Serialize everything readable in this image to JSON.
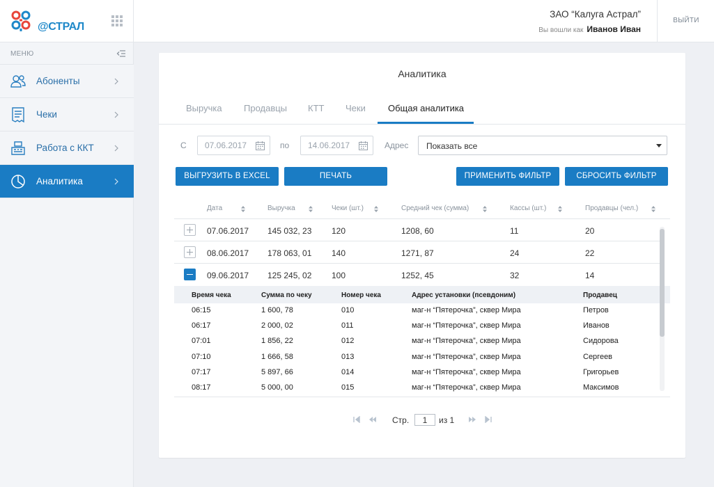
{
  "header": {
    "logo_text": "@СТРАЛ",
    "org_name": "ЗАО “Калуга Астрал”",
    "logged_in_label": "Вы вошли как",
    "user_name": "Иванов Иван",
    "logout_label": "ВЫЙТИ"
  },
  "sidebar": {
    "menu_label": "МЕНЮ",
    "items": [
      {
        "label": "Абоненты",
        "icon": "users-icon",
        "active": false
      },
      {
        "label": "Чеки",
        "icon": "receipt-icon",
        "active": false
      },
      {
        "label": "Работа с ККТ",
        "icon": "cash-register-icon",
        "active": false
      },
      {
        "label": "Аналитика",
        "icon": "pie-chart-icon",
        "active": true
      }
    ]
  },
  "main": {
    "title": "Аналитика",
    "tabs": [
      {
        "label": "Выручка",
        "active": false
      },
      {
        "label": "Продавцы",
        "active": false
      },
      {
        "label": "КТТ",
        "active": false
      },
      {
        "label": "Чеки",
        "active": false
      },
      {
        "label": "Общая аналитика",
        "active": true
      }
    ],
    "filters": {
      "from_label": "С",
      "from_value": "07.06.2017",
      "to_label": "по",
      "to_value": "14.06.2017",
      "address_label": "Адрес",
      "address_value": "Показать все"
    },
    "buttons": {
      "export": "ВЫГРУЗИТЬ В EXCEL",
      "print": "ПЕЧАТЬ",
      "apply": "ПРИМЕНИТЬ ФИЛЬТР",
      "reset": "СБРОСИТЬ ФИЛЬТР"
    },
    "table": {
      "columns": [
        "Дата",
        "Выручка",
        "Чеки (шт.)",
        "Средний чек (сумма)",
        "Кассы (шт.)",
        "Продавцы (чел.)"
      ],
      "rows": [
        {
          "date": "07.06.2017",
          "revenue": "145 032, 23",
          "checks": "120",
          "avg": "1208, 60",
          "kkt": "11",
          "sellers": "20",
          "expanded": false
        },
        {
          "date": "08.06.2017",
          "revenue": "178 063, 01",
          "checks": "140",
          "avg": "1271, 87",
          "kkt": "24",
          "sellers": "22",
          "expanded": false
        },
        {
          "date": "09.06.2017",
          "revenue": "125 245, 02",
          "checks": "100",
          "avg": "1252, 45",
          "kkt": "32",
          "sellers": "14",
          "expanded": true
        }
      ],
      "sub_columns": [
        "Время чека",
        "Сумма по чеку",
        "Номер чека",
        "Адрес установки (псевдоним)",
        "Продавец"
      ],
      "sub_rows": [
        {
          "time": "06:15",
          "sum": "1 600, 78",
          "num": "010",
          "addr": "маг-н “Пятерочка”, сквер Мира",
          "seller": "Петров"
        },
        {
          "time": "06:17",
          "sum": "2 000, 02",
          "num": "011",
          "addr": "маг-н “Пятерочка”, сквер Мира",
          "seller": "Иванов"
        },
        {
          "time": "07:01",
          "sum": "1 856, 22",
          "num": "012",
          "addr": "маг-н “Пятерочка”, сквер Мира",
          "seller": "Сидорова"
        },
        {
          "time": "07:10",
          "sum": "1 666, 58",
          "num": "013",
          "addr": "маг-н “Пятерочка”, сквер Мира",
          "seller": "Сергеев"
        },
        {
          "time": "07:17",
          "sum": "5 897, 66",
          "num": "014",
          "addr": "маг-н “Пятерочка”, сквер Мира",
          "seller": "Григорьев"
        },
        {
          "time": "08:17",
          "sum": "5 000, 00",
          "num": "015",
          "addr": "маг-н “Пятерочка”, сквер Мира",
          "seller": "Максимов"
        }
      ]
    },
    "pager": {
      "page_label": "Стр.",
      "page_value": "1",
      "of_label": "из 1"
    }
  },
  "colors": {
    "accent": "#1a7cc4",
    "sidebar_bg": "#f3f5f8",
    "page_bg": "#eef0f4"
  }
}
